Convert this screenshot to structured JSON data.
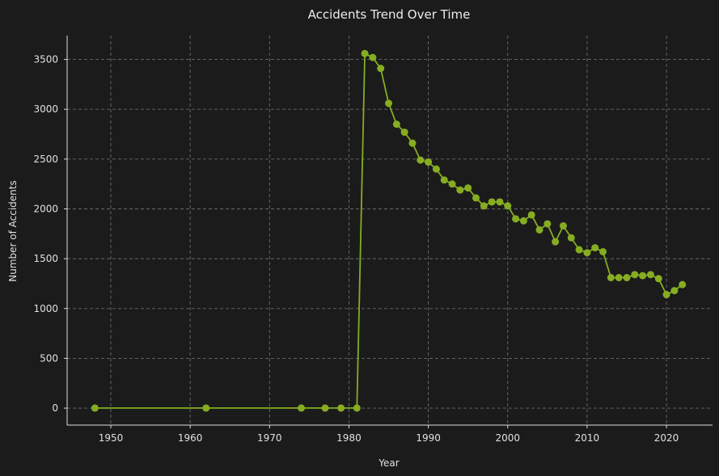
{
  "chart_data": {
    "type": "line",
    "title": "Accidents Trend Over Time",
    "xlabel": "Year",
    "ylabel": "Number of Accidents",
    "xlim": [
      1944.5,
      2025.8
    ],
    "ylim": [
      -170,
      3740
    ],
    "x_ticks": [
      1950,
      1960,
      1970,
      1980,
      1990,
      2000,
      2010,
      2020
    ],
    "y_ticks": [
      0,
      500,
      1000,
      1500,
      2000,
      2500,
      3000,
      3500
    ],
    "grid": true,
    "line_color": "#86ad22",
    "background_color": "#1b1b1b",
    "x": [
      1948,
      1962,
      1974,
      1977,
      1979,
      1981,
      1982,
      1983,
      1984,
      1985,
      1986,
      1987,
      1988,
      1989,
      1990,
      1991,
      1992,
      1993,
      1994,
      1995,
      1996,
      1997,
      1998,
      1999,
      2000,
      2001,
      2002,
      2003,
      2004,
      2005,
      2006,
      2007,
      2008,
      2009,
      2010,
      2011,
      2012,
      2013,
      2014,
      2015,
      2016,
      2017,
      2018,
      2019,
      2020,
      2021,
      2022
    ],
    "values": [
      1,
      1,
      1,
      1,
      1,
      1,
      3560,
      3520,
      3410,
      3060,
      2850,
      2770,
      2660,
      2490,
      2470,
      2400,
      2290,
      2250,
      2190,
      2210,
      2110,
      2030,
      2070,
      2070,
      2030,
      1900,
      1880,
      1940,
      1790,
      1850,
      1670,
      1830,
      1710,
      1590,
      1560,
      1610,
      1570,
      1310,
      1310,
      1310,
      1340,
      1330,
      1340,
      1300,
      1140,
      1180,
      1240
    ]
  }
}
